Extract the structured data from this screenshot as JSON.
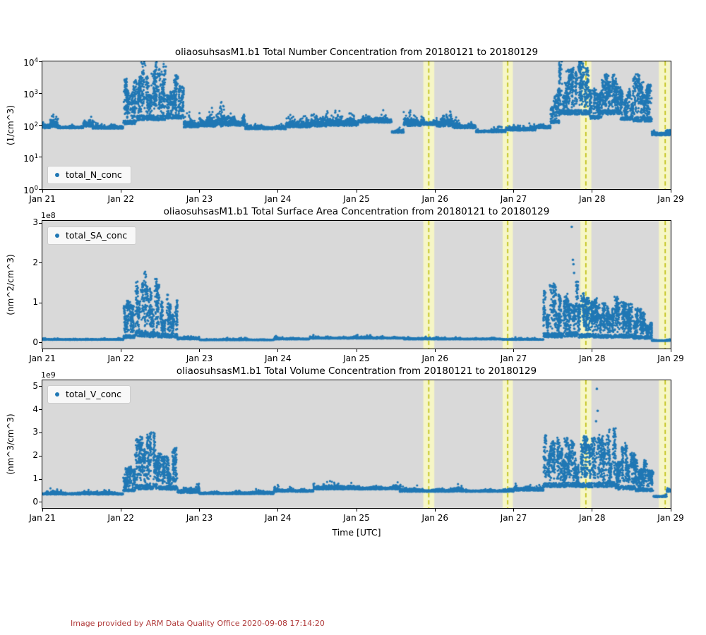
{
  "figure": {
    "footer": {
      "text": "Image provided by ARM Data Quality Office 2020-09-08 17:14:20",
      "color": "#b03a3a"
    }
  },
  "style": {
    "marker_color": "#1f77b4",
    "axes_background": "#d9d9d9",
    "band_fill": "#f6f6c6",
    "band_line_color": "#c3c31e",
    "spine_color": "#000000",
    "legend_background": "rgba(255,255,255,0.82)"
  },
  "time_axis": {
    "label": "Time [UTC]",
    "tick_labels": [
      "Jan 21",
      "Jan 22",
      "Jan 23",
      "Jan 24",
      "Jan 25",
      "Jan 26",
      "Jan 27",
      "Jan 28",
      "Jan 29"
    ],
    "domain_days": [
      21,
      29
    ]
  },
  "qc_bands": [
    {
      "start": 25.85,
      "end": 25.99,
      "line": 25.92
    },
    {
      "start": 26.86,
      "end": 26.99,
      "line": 26.925
    },
    {
      "start": 27.85,
      "end": 27.99,
      "line": 27.92
    },
    {
      "start": 28.85,
      "end": 28.99,
      "line": 28.93
    }
  ],
  "chart_data": [
    {
      "type": "scatter",
      "title": "oliaosuhsasM1.b1 Total Number Concentration from 20180121 to 20180129",
      "xlabel": "",
      "ylabel": "(1/cm^3)",
      "yscale": "log",
      "ylim": [
        1,
        10000
      ],
      "ytick_exponents": [
        0,
        1,
        2,
        3,
        4
      ],
      "legend_position": "lower left",
      "series": [
        {
          "name": "total_N_conc",
          "color": "#1f77b4"
        }
      ],
      "segments": [
        [
          21.0,
          21.1,
          80,
          260,
          "spiky"
        ],
        [
          21.1,
          21.2,
          85,
          420,
          "spiky"
        ],
        [
          21.2,
          21.52,
          80,
          150,
          "base"
        ],
        [
          21.52,
          21.64,
          90,
          330,
          "spiky"
        ],
        [
          21.64,
          22.03,
          78,
          135,
          "base"
        ],
        [
          22.03,
          22.2,
          100,
          3200,
          "burst"
        ],
        [
          22.2,
          22.58,
          130,
          11000,
          "burst"
        ],
        [
          22.58,
          22.8,
          150,
          5200,
          "burst"
        ],
        [
          22.8,
          23.0,
          85,
          260,
          "base"
        ],
        [
          23.0,
          23.32,
          90,
          560,
          "spiky"
        ],
        [
          23.32,
          23.58,
          95,
          520,
          "spiky"
        ],
        [
          23.58,
          24.1,
          75,
          160,
          "base"
        ],
        [
          24.1,
          24.42,
          85,
          230,
          "spiky"
        ],
        [
          24.42,
          24.62,
          90,
          380,
          "spiky"
        ],
        [
          24.62,
          25.02,
          95,
          420,
          "spiky"
        ],
        [
          25.02,
          25.45,
          120,
          300,
          "base"
        ],
        [
          25.45,
          25.6,
          58,
          105,
          "base"
        ],
        [
          25.6,
          25.82,
          95,
          330,
          "spiky"
        ],
        [
          25.82,
          26.02,
          100,
          300,
          "spiky"
        ],
        [
          26.02,
          26.22,
          90,
          420,
          "spiky"
        ],
        [
          26.22,
          26.52,
          80,
          260,
          "spiky"
        ],
        [
          26.52,
          26.9,
          60,
          110,
          "base"
        ],
        [
          26.9,
          27.28,
          68,
          125,
          "base"
        ],
        [
          27.28,
          27.47,
          80,
          200,
          "base"
        ],
        [
          27.47,
          27.58,
          110,
          1600,
          "burst"
        ],
        [
          27.58,
          27.97,
          200,
          11000,
          "burst"
        ],
        [
          27.97,
          28.12,
          150,
          2600,
          "burst"
        ],
        [
          28.12,
          28.36,
          200,
          11000,
          "burst"
        ],
        [
          28.36,
          28.52,
          140,
          1800,
          "burst"
        ],
        [
          28.52,
          28.76,
          120,
          8000,
          "burst"
        ],
        [
          28.76,
          29.0,
          48,
          130,
          "base"
        ]
      ],
      "outliers": []
    },
    {
      "type": "scatter",
      "title": "oliaosuhsasM1.b1 Total Surface Area Concentration from 20180121 to 20180129",
      "xlabel": "",
      "ylabel": "(nm^2/cm^3)",
      "yscale": "linear",
      "offset_text": "1e8",
      "unit_scale": 100000000.0,
      "ylim": [
        -0.15,
        3.06
      ],
      "yticks": [
        0,
        1,
        2,
        3
      ],
      "legend_position": "upper left",
      "series": [
        {
          "name": "total_SA_conc",
          "color": "#1f77b4"
        }
      ],
      "segments": [
        [
          21.0,
          22.03,
          0.07,
          0.14,
          "base"
        ],
        [
          22.03,
          22.18,
          0.09,
          1.1,
          "burst"
        ],
        [
          22.18,
          22.32,
          0.1,
          2.1,
          "burst"
        ],
        [
          22.32,
          22.5,
          0.1,
          1.75,
          "burst"
        ],
        [
          22.5,
          22.72,
          0.1,
          1.3,
          "burst"
        ],
        [
          22.72,
          23.0,
          0.08,
          0.3,
          "base"
        ],
        [
          23.0,
          23.95,
          0.06,
          0.13,
          "base"
        ],
        [
          23.95,
          24.4,
          0.08,
          0.17,
          "base"
        ],
        [
          24.4,
          25.6,
          0.1,
          0.21,
          "base"
        ],
        [
          25.6,
          26.85,
          0.08,
          0.16,
          "base"
        ],
        [
          26.85,
          27.38,
          0.07,
          0.14,
          "base"
        ],
        [
          27.38,
          27.62,
          0.1,
          1.5,
          "burst"
        ],
        [
          27.62,
          27.82,
          0.12,
          1.55,
          "burst"
        ],
        [
          27.82,
          28.06,
          0.1,
          1.35,
          "burst"
        ],
        [
          28.06,
          28.28,
          0.1,
          1.05,
          "burst"
        ],
        [
          28.28,
          28.52,
          0.1,
          1.2,
          "burst"
        ],
        [
          28.52,
          28.76,
          0.08,
          0.9,
          "burst"
        ],
        [
          28.76,
          29.0,
          0.04,
          0.12,
          "base"
        ]
      ],
      "outliers": [
        [
          27.74,
          2.91
        ],
        [
          27.755,
          2.08
        ],
        [
          27.762,
          1.97
        ],
        [
          27.77,
          1.75
        ]
      ]
    },
    {
      "type": "scatter",
      "title": "oliaosuhsasM1.b1 Total Volume Concentration from 20180121 to 20180129",
      "xlabel": "Time [UTC]",
      "ylabel": "(nm^3/cm^3)",
      "yscale": "linear",
      "offset_text": "1e9",
      "unit_scale": 1000000000.0,
      "ylim": [
        -0.25,
        5.27
      ],
      "yticks": [
        0,
        1,
        2,
        3,
        4,
        5
      ],
      "legend_position": "upper left",
      "series": [
        {
          "name": "total_V_conc",
          "color": "#1f77b4"
        }
      ],
      "segments": [
        [
          21.0,
          22.03,
          0.33,
          0.62,
          "base"
        ],
        [
          22.03,
          22.18,
          0.45,
          1.6,
          "burst"
        ],
        [
          22.18,
          22.33,
          0.5,
          3.1,
          "burst"
        ],
        [
          22.33,
          22.47,
          0.5,
          3.65,
          "burst"
        ],
        [
          22.47,
          22.72,
          0.5,
          2.55,
          "burst"
        ],
        [
          22.72,
          23.0,
          0.4,
          1.0,
          "base"
        ],
        [
          23.0,
          23.95,
          0.35,
          0.65,
          "base"
        ],
        [
          23.95,
          24.45,
          0.45,
          0.8,
          "base"
        ],
        [
          24.45,
          25.55,
          0.55,
          0.95,
          "base"
        ],
        [
          25.55,
          26.35,
          0.45,
          0.8,
          "base"
        ],
        [
          26.35,
          27.0,
          0.45,
          0.75,
          "base"
        ],
        [
          27.0,
          27.38,
          0.5,
          0.85,
          "base"
        ],
        [
          27.38,
          27.62,
          0.6,
          2.9,
          "burst"
        ],
        [
          27.62,
          27.84,
          0.6,
          3.1,
          "burst"
        ],
        [
          27.84,
          28.06,
          0.6,
          2.9,
          "burst"
        ],
        [
          28.06,
          28.3,
          0.6,
          3.3,
          "burst"
        ],
        [
          28.3,
          28.55,
          0.5,
          2.6,
          "burst"
        ],
        [
          28.55,
          28.78,
          0.45,
          1.9,
          "burst"
        ],
        [
          28.78,
          28.95,
          0.22,
          0.48,
          "base"
        ],
        [
          28.95,
          29.0,
          0.45,
          0.85,
          "base"
        ]
      ],
      "outliers": [
        [
          28.06,
          4.9
        ],
        [
          28.07,
          3.95
        ],
        [
          28.05,
          3.5
        ]
      ]
    }
  ]
}
